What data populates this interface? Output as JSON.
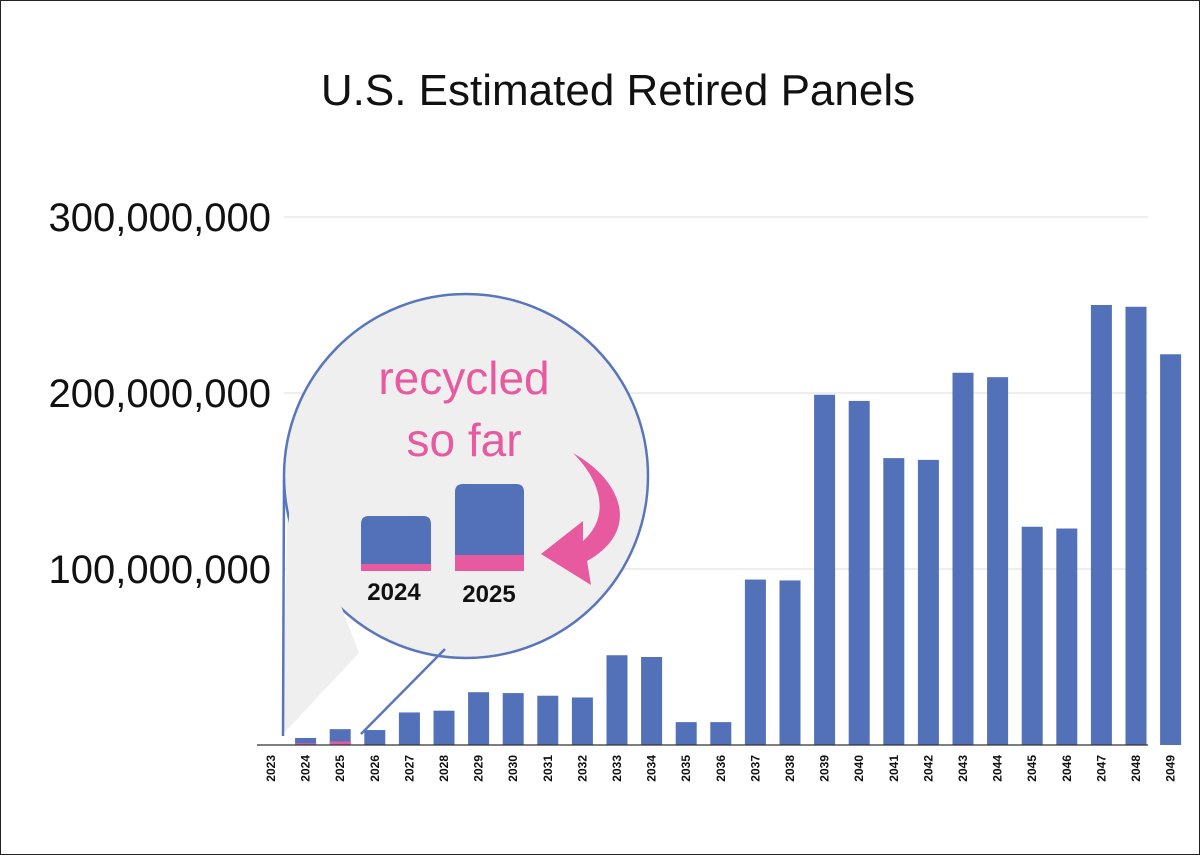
{
  "chart_data": {
    "type": "bar",
    "title": "U.S. Estimated Retired Panels",
    "categories": [
      "2023",
      "2024",
      "2025",
      "2026",
      "2027",
      "2028",
      "2029",
      "2030",
      "2031",
      "2032",
      "2033",
      "2034",
      "2035",
      "2036",
      "2037",
      "2038",
      "2039",
      "2040",
      "2041",
      "2042",
      "2043",
      "2044",
      "2045",
      "2046",
      "2047",
      "2048",
      "2049"
    ],
    "series": [
      {
        "values": [
          0,
          4000000,
          9000000,
          8500000,
          18500000,
          19500000,
          30000000,
          29500000,
          28000000,
          27000000,
          51000000,
          50000000,
          13000000,
          13000000,
          94000000,
          93500000,
          199000000,
          195500000,
          163000000,
          162000000,
          211500000,
          209000000,
          124000000,
          123000000,
          250000000,
          249000000,
          222000000
        ],
        "color": "#5271b8"
      },
      {
        "values": [
          0,
          1000000,
          2000000,
          0,
          0,
          0,
          0,
          0,
          0,
          0,
          0,
          0,
          0,
          0,
          0,
          0,
          0,
          0,
          0,
          0,
          0,
          0,
          0,
          0,
          0,
          0,
          0
        ],
        "color": "#e85aa0"
      }
    ],
    "yticks": [
      "300,000,000",
      "200,000,000",
      "100,000,000"
    ],
    "ytick_values": [
      300000000,
      200000000,
      100000000
    ],
    "ylim": [
      0,
      300000000
    ],
    "grid": true,
    "annotation": {
      "text_line1": "recycled",
      "text_line2": "so far",
      "years": [
        "2024",
        "2025"
      ],
      "text_color": "#e85aa0",
      "circle_fill": "#efefef",
      "circle_stroke": "#5a76bb"
    }
  }
}
